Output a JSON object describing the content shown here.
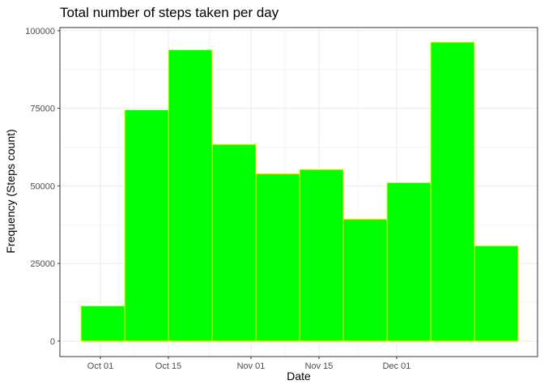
{
  "chart_data": {
    "type": "bar",
    "title": "Total number of steps taken per day",
    "xlabel": "Date",
    "ylabel": "Frequency (Steps count)",
    "x_ticks": [
      "Oct 01",
      "Oct 15",
      "Nov 01",
      "Nov 15",
      "Dec 01"
    ],
    "y_ticks": [
      "0",
      "25000",
      "50000",
      "75000",
      "100000"
    ],
    "y_tick_values": [
      0,
      25000,
      50000,
      75000,
      100000
    ],
    "bins": [
      {
        "start": "2012-09-27",
        "end": "2012-10-06",
        "value": 11352
      },
      {
        "start": "2012-10-06",
        "end": "2012-10-15",
        "value": 74497
      },
      {
        "start": "2012-10-15",
        "end": "2012-10-24",
        "value": 93850
      },
      {
        "start": "2012-10-24",
        "end": "2012-11-02",
        "value": 63385
      },
      {
        "start": "2012-11-02",
        "end": "2012-11-11",
        "value": 53934
      },
      {
        "start": "2012-11-11",
        "end": "2012-11-20",
        "value": 55300
      },
      {
        "start": "2012-11-20",
        "end": "2012-11-29",
        "value": 39307
      },
      {
        "start": "2012-11-29",
        "end": "2012-12-08",
        "value": 51047
      },
      {
        "start": "2012-12-08",
        "end": "2012-12-17",
        "value": 96311
      },
      {
        "start": "2012-12-17",
        "end": "2012-12-26",
        "value": 30705
      }
    ],
    "ylim": [
      -5000,
      101000
    ],
    "grid": true,
    "colors": {
      "fill": "#00ff00",
      "stroke": "#ffff00",
      "grid": "#ebebeb",
      "panel_border": "#333333"
    }
  }
}
